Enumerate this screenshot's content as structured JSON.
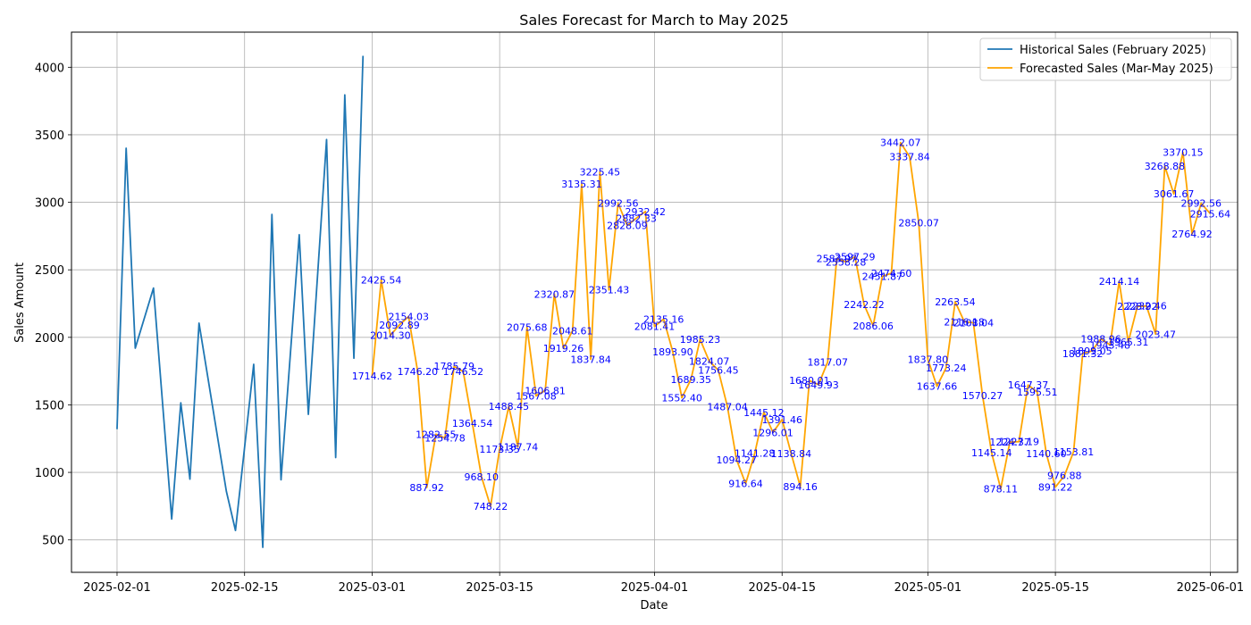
{
  "chart_data": {
    "type": "line",
    "title": "Sales Forecast for March to May 2025",
    "xlabel": "Date",
    "ylabel": "Sales Amount",
    "xlim": [
      "2025-01-27",
      "2025-06-04"
    ],
    "ylim": [
      260,
      4260
    ],
    "x_ticks": [
      "2025-02-01",
      "2025-02-15",
      "2025-03-01",
      "2025-03-15",
      "2025-04-01",
      "2025-04-15",
      "2025-05-01",
      "2025-05-15",
      "2025-06-01"
    ],
    "y_ticks": [
      500,
      1000,
      1500,
      2000,
      2500,
      3000,
      3500,
      4000
    ],
    "grid": true,
    "legend_position": "top-right",
    "label_color": "#0000ff",
    "series": [
      {
        "name": "Historical Sales (February 2025)",
        "color": "#1f77b4",
        "labeled": false,
        "points": [
          [
            "2025-02-01",
            1320
          ],
          [
            "2025-02-02",
            3400
          ],
          [
            "2025-02-03",
            1920
          ],
          [
            "2025-02-05",
            2365
          ],
          [
            "2025-02-07",
            655
          ],
          [
            "2025-02-08",
            1515
          ],
          [
            "2025-02-09",
            950
          ],
          [
            "2025-02-10",
            2105
          ],
          [
            "2025-02-13",
            860
          ],
          [
            "2025-02-14",
            570
          ],
          [
            "2025-02-16",
            1800
          ],
          [
            "2025-02-17",
            445
          ],
          [
            "2025-02-18",
            2910
          ],
          [
            "2025-02-19",
            945
          ],
          [
            "2025-02-21",
            2760
          ],
          [
            "2025-02-22",
            1430
          ],
          [
            "2025-02-24",
            3465
          ],
          [
            "2025-02-25",
            1110
          ],
          [
            "2025-02-26",
            3795
          ],
          [
            "2025-02-27",
            1845
          ],
          [
            "2025-02-28",
            4085
          ]
        ]
      },
      {
        "name": "Forecasted Sales (Mar-May 2025)",
        "color": "#ffa500",
        "labeled": true,
        "points": [
          [
            "2025-03-01",
            1714.62
          ],
          [
            "2025-03-02",
            2425.54
          ],
          [
            "2025-03-03",
            2014.3
          ],
          [
            "2025-03-04",
            2092.89
          ],
          [
            "2025-03-05",
            2154.03
          ],
          [
            "2025-03-06",
            1746.2
          ],
          [
            "2025-03-07",
            887.92
          ],
          [
            "2025-03-08",
            1282.55
          ],
          [
            "2025-03-09",
            1254.78
          ],
          [
            "2025-03-10",
            1785.79
          ],
          [
            "2025-03-11",
            1746.52
          ],
          [
            "2025-03-12",
            1364.54
          ],
          [
            "2025-03-13",
            968.1
          ],
          [
            "2025-03-14",
            748.22
          ],
          [
            "2025-03-15",
            1173.35
          ],
          [
            "2025-03-16",
            1488.45
          ],
          [
            "2025-03-17",
            1187.74
          ],
          [
            "2025-03-18",
            2075.68
          ],
          [
            "2025-03-19",
            1567.08
          ],
          [
            "2025-03-20",
            1606.81
          ],
          [
            "2025-03-21",
            2320.87
          ],
          [
            "2025-03-22",
            1919.26
          ],
          [
            "2025-03-23",
            2048.61
          ],
          [
            "2025-03-24",
            3135.31
          ],
          [
            "2025-03-25",
            1837.84
          ],
          [
            "2025-03-26",
            3225.45
          ],
          [
            "2025-03-27",
            2351.43
          ],
          [
            "2025-03-28",
            2992.56
          ],
          [
            "2025-03-29",
            2828.09
          ],
          [
            "2025-03-30",
            2882.33
          ],
          [
            "2025-03-31",
            2932.42
          ],
          [
            "2025-04-01",
            2081.41
          ],
          [
            "2025-04-02",
            2135.16
          ],
          [
            "2025-04-03",
            1893.9
          ],
          [
            "2025-04-04",
            1552.4
          ],
          [
            "2025-04-05",
            1689.35
          ],
          [
            "2025-04-06",
            1985.23
          ],
          [
            "2025-04-07",
            1824.07
          ],
          [
            "2025-04-08",
            1756.45
          ],
          [
            "2025-04-09",
            1487.04
          ],
          [
            "2025-04-10",
            1094.27
          ],
          [
            "2025-04-11",
            916.64
          ],
          [
            "2025-04-12",
            1141.28
          ],
          [
            "2025-04-13",
            1445.12
          ],
          [
            "2025-04-14",
            1296.01
          ],
          [
            "2025-04-15",
            1391.46
          ],
          [
            "2025-04-16",
            1138.84
          ],
          [
            "2025-04-17",
            894.16
          ],
          [
            "2025-04-18",
            1680.01
          ],
          [
            "2025-04-19",
            1649.93
          ],
          [
            "2025-04-20",
            1817.07
          ],
          [
            "2025-04-21",
            2583.97
          ],
          [
            "2025-04-22",
            2558.28
          ],
          [
            "2025-04-23",
            2597.29
          ],
          [
            "2025-04-24",
            2242.22
          ],
          [
            "2025-04-25",
            2086.06
          ],
          [
            "2025-04-26",
            2451.87
          ],
          [
            "2025-04-27",
            2474.6
          ],
          [
            "2025-04-28",
            3442.07
          ],
          [
            "2025-04-29",
            3337.84
          ],
          [
            "2025-04-30",
            2850.07
          ],
          [
            "2025-05-01",
            1837.8
          ],
          [
            "2025-05-02",
            1637.66
          ],
          [
            "2025-05-03",
            1773.24
          ],
          [
            "2025-05-04",
            2263.54
          ],
          [
            "2025-05-05",
            2116.18
          ],
          [
            "2025-05-06",
            2108.04
          ],
          [
            "2025-05-07",
            1570.27
          ],
          [
            "2025-05-08",
            1145.14
          ],
          [
            "2025-05-09",
            878.11
          ],
          [
            "2025-05-10",
            1224.37
          ],
          [
            "2025-05-11",
            1227.19
          ],
          [
            "2025-05-12",
            1647.37
          ],
          [
            "2025-05-13",
            1595.51
          ],
          [
            "2025-05-14",
            1140.6
          ],
          [
            "2025-05-15",
            891.22
          ],
          [
            "2025-05-16",
            976.88
          ],
          [
            "2025-05-17",
            1153.81
          ],
          [
            "2025-05-18",
            1881.32
          ],
          [
            "2025-05-19",
            1899.05
          ],
          [
            "2025-05-20",
            1988.96
          ],
          [
            "2025-05-21",
            1943.48
          ],
          [
            "2025-05-22",
            2414.14
          ],
          [
            "2025-05-23",
            1965.31
          ],
          [
            "2025-05-24",
            2228.92
          ],
          [
            "2025-05-25",
            2232.46
          ],
          [
            "2025-05-26",
            2023.47
          ],
          [
            "2025-05-27",
            3268.88
          ],
          [
            "2025-05-28",
            3061.67
          ],
          [
            "2025-05-29",
            3370.15
          ],
          [
            "2025-05-30",
            2764.92
          ],
          [
            "2025-05-31",
            2992.56
          ],
          [
            "2025-06-01",
            2915.64
          ]
        ]
      }
    ]
  }
}
